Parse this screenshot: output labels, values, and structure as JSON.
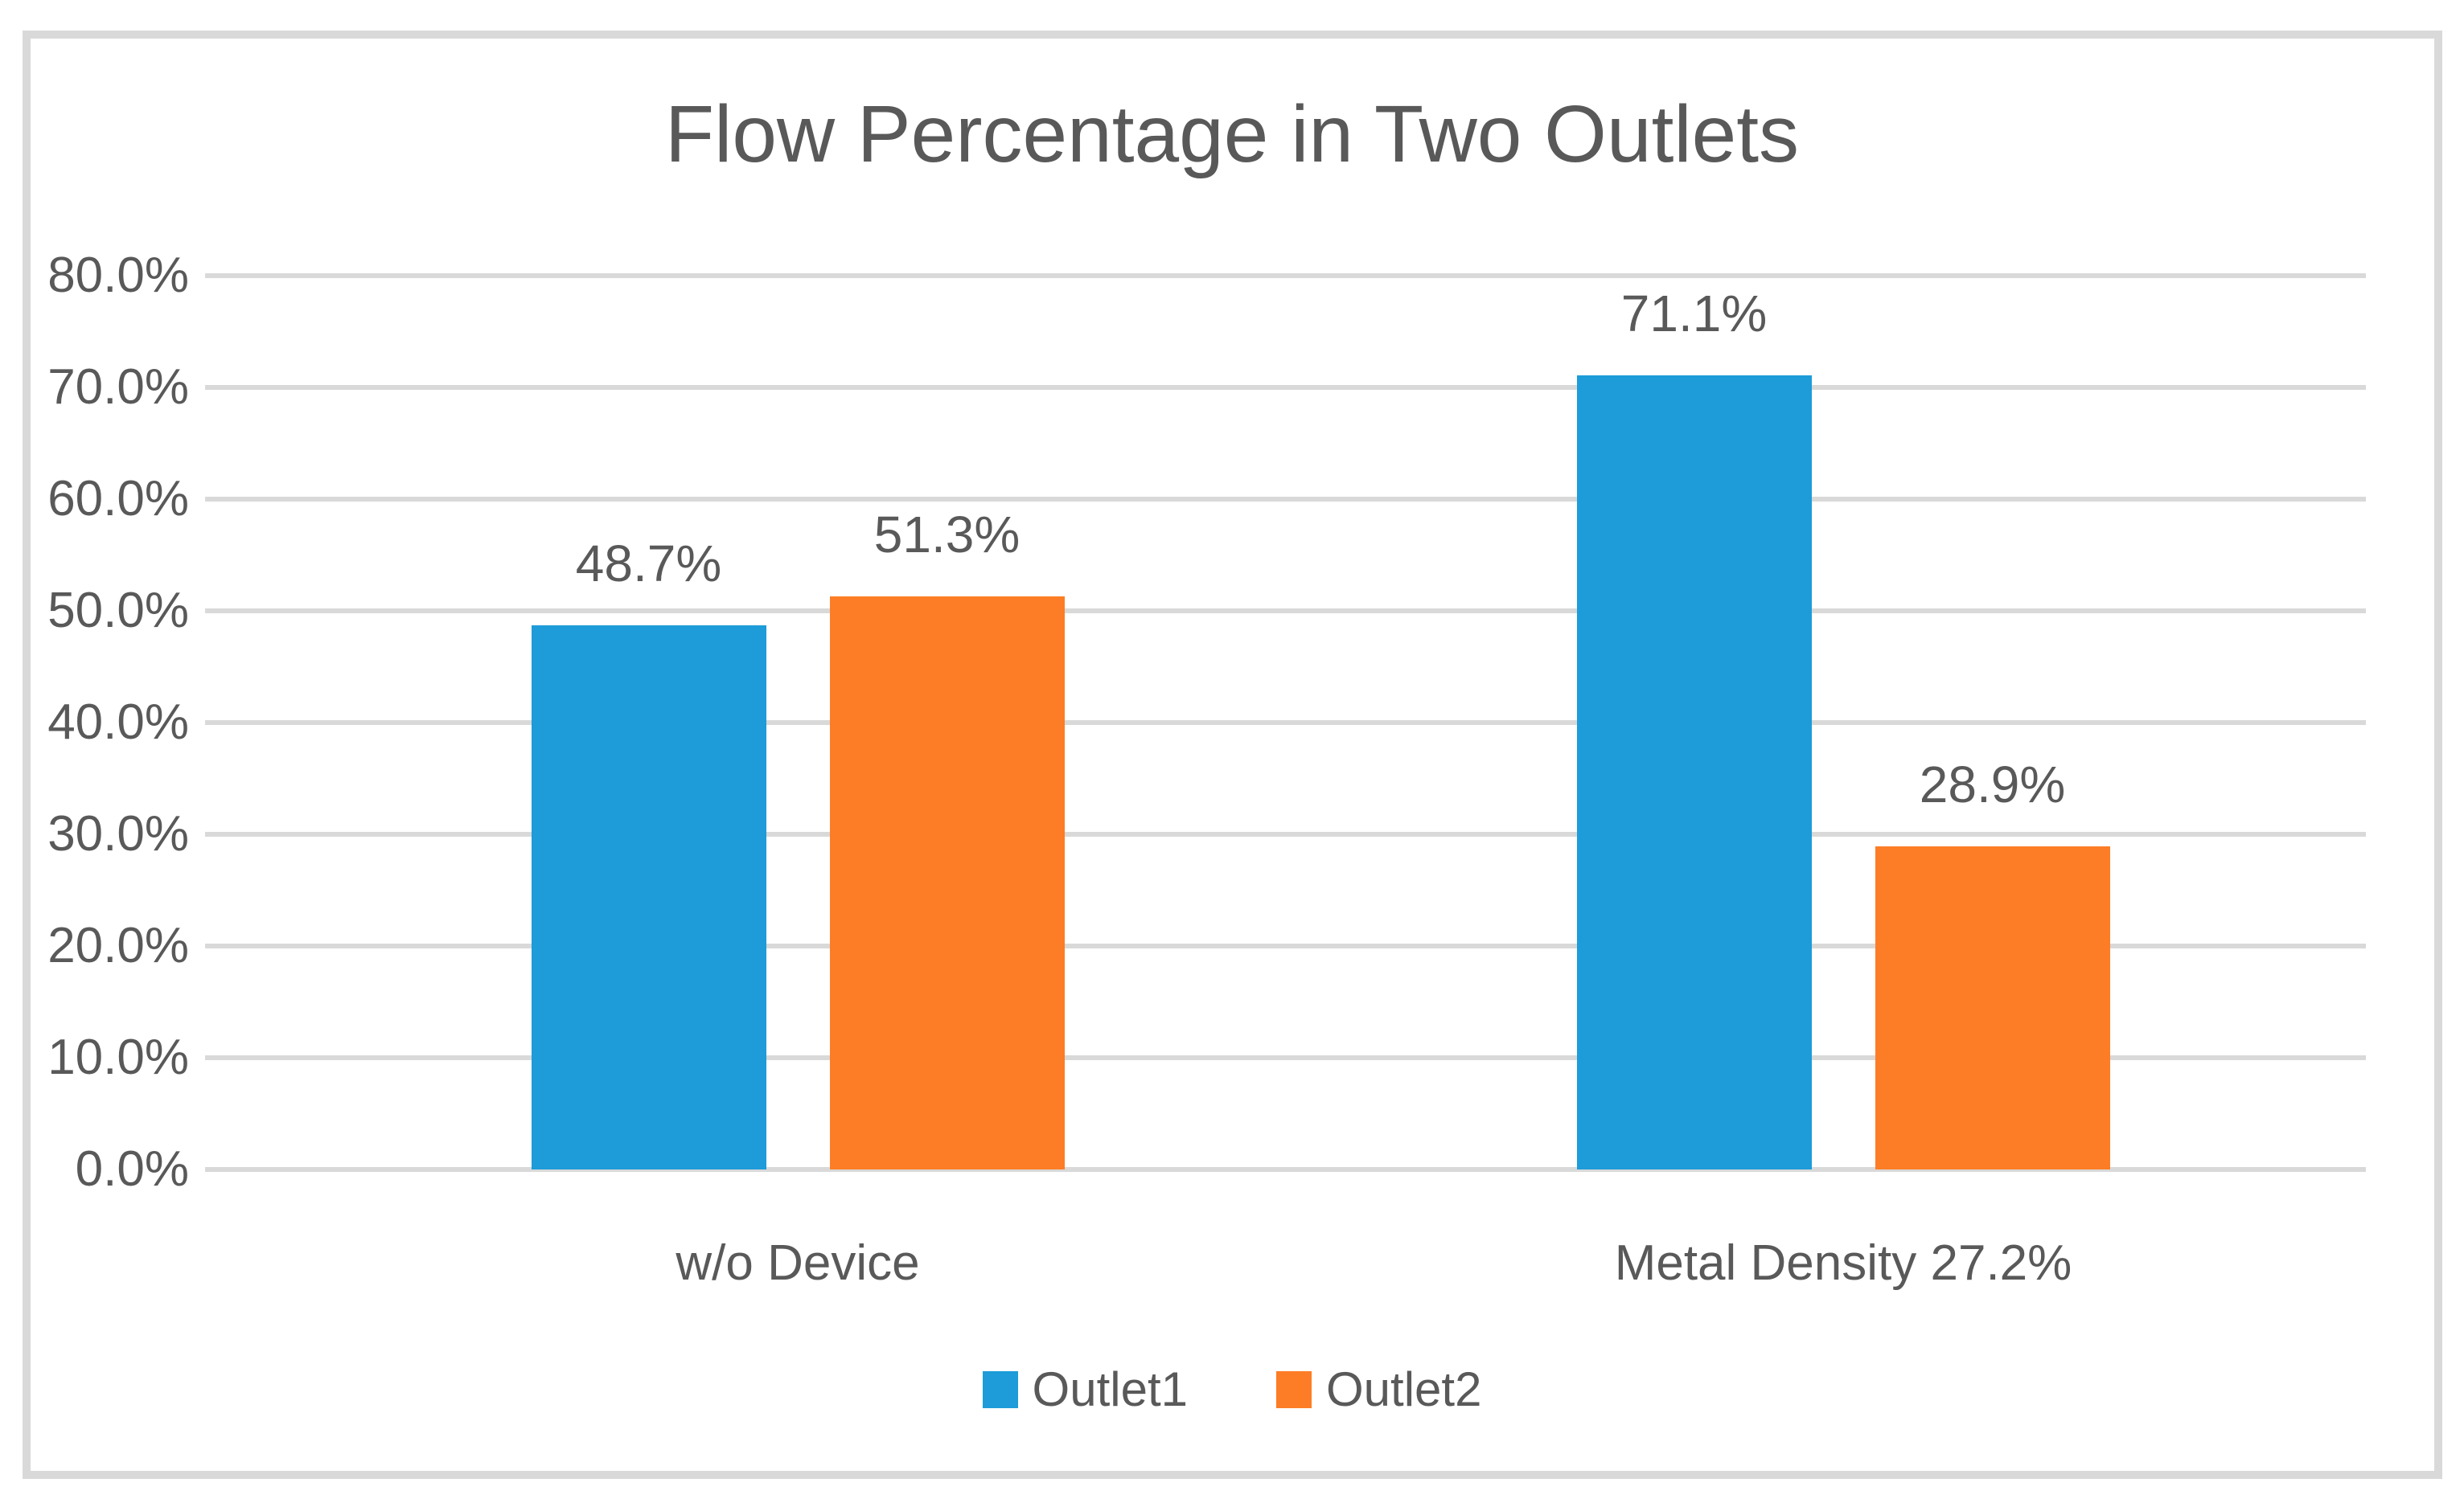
{
  "chart_data": {
    "type": "bar",
    "title": "Flow Percentage in Two Outlets",
    "categories": [
      "w/o Device",
      "Metal Density 27.2%"
    ],
    "series": [
      {
        "name": "Outlet1",
        "color": "#1D9CD9",
        "values": [
          48.7,
          71.1
        ],
        "labels": [
          "48.7%",
          "71.1%"
        ]
      },
      {
        "name": "Outlet2",
        "color": "#FD7D26",
        "values": [
          51.3,
          28.9
        ],
        "labels": [
          "51.3%",
          "28.9%"
        ]
      }
    ],
    "y_axis": {
      "min": 0,
      "max": 80,
      "step": 10,
      "tick_labels": [
        "0.0%",
        "10.0%",
        "20.0%",
        "30.0%",
        "40.0%",
        "50.0%",
        "60.0%",
        "70.0%",
        "80.0%"
      ]
    },
    "legend": {
      "position": "bottom",
      "entries": [
        "Outlet1",
        "Outlet2"
      ]
    },
    "grid": true,
    "colors": {
      "gridline": "#D9D9D9",
      "frame_border": "#D9D9D9",
      "text": "#595959",
      "background": "#FFFFFF"
    }
  }
}
